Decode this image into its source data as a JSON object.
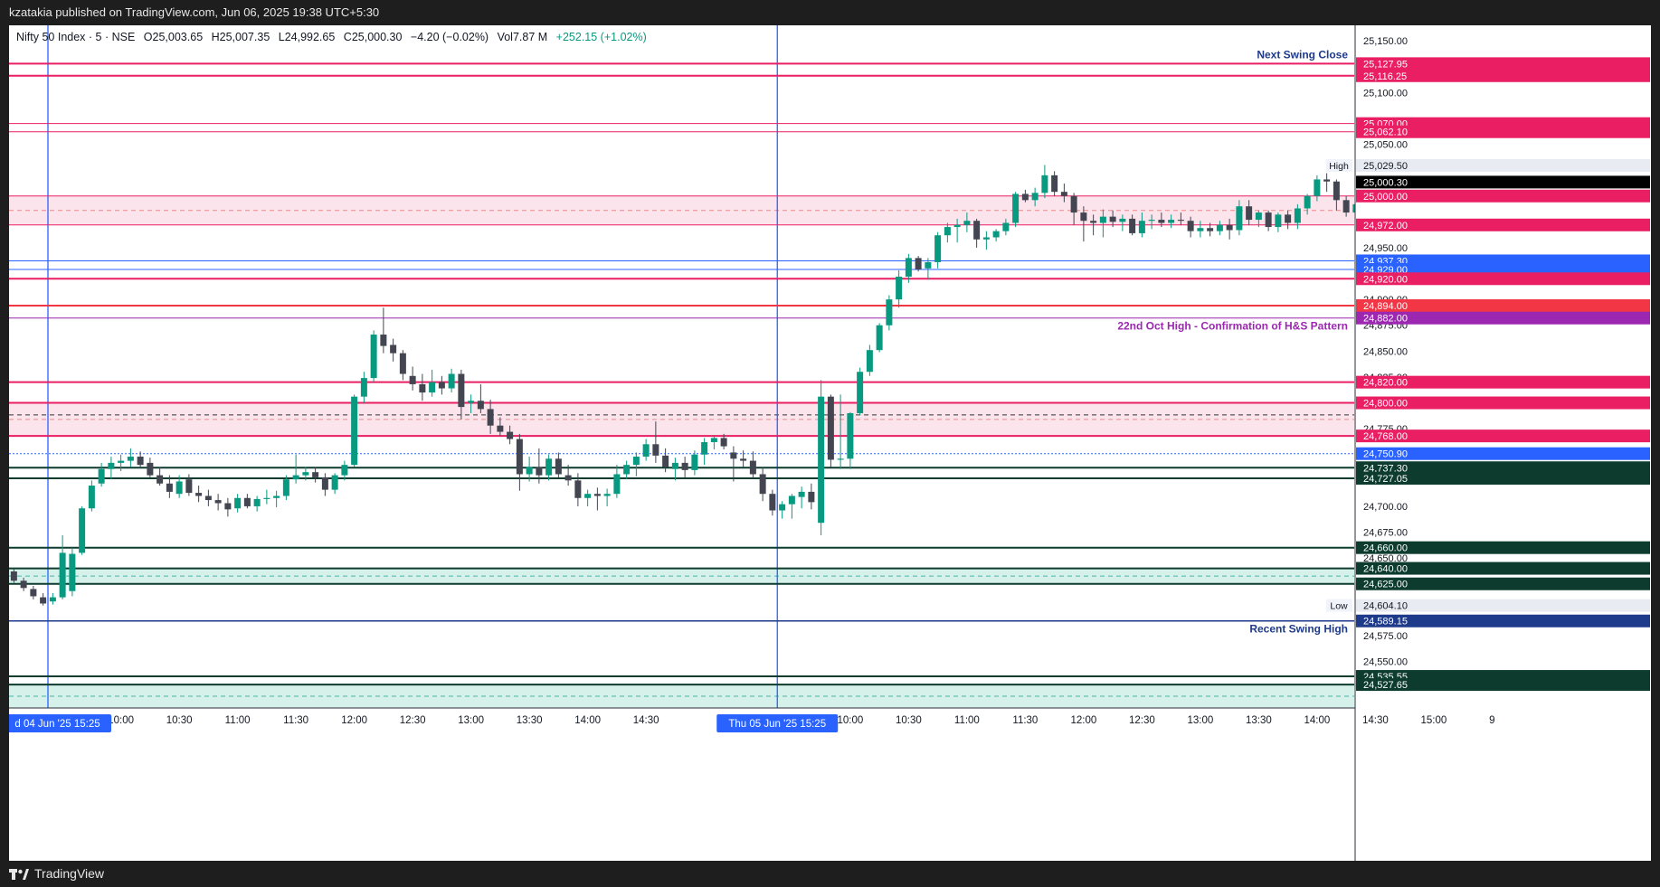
{
  "header": {
    "publish_text": "kzatakia published on TradingView.com, Jun 06, 2025 19:38 UTC+5:30"
  },
  "footer": {
    "brand": "TradingView",
    "logo_icon": "tradingview-logo-icon"
  },
  "legend": {
    "symbol": "Nifty 50 Index · 5 · NSE",
    "open_label": "O",
    "open": "25,003.65",
    "high_label": "H",
    "high": "25,007.35",
    "low_label": "L",
    "low": "24,992.65",
    "close_label": "C",
    "close": "25,000.30",
    "change": "−4.20 (−0.02%)",
    "volume_label": "Vol",
    "volume": "7.87 M",
    "extra_change": "+252.15 (+1.02%)"
  },
  "colors": {
    "bull": "#089981",
    "bear": "#434651",
    "red": "#f23645",
    "crimson": "#e91e63",
    "blue": "#2962ff",
    "navy": "#1e3a8a",
    "darkgreen": "#0d3b2e",
    "purple": "#9c27b0",
    "pink_zone": "#fce4ec",
    "green_zone": "#d6f1ea"
  },
  "chart_data": {
    "type": "candlestick",
    "symbol": "Nifty 50 Index",
    "interval": "5",
    "ylim": [
      24505,
      25165
    ],
    "y_ticks": [
      {
        "value": 25150,
        "label": "25,150.00"
      },
      {
        "value": 25100,
        "label": "25,100.00"
      },
      {
        "value": 25050,
        "label": "25,050.00"
      },
      {
        "value": 24950,
        "label": "24,950.00"
      },
      {
        "value": 24900,
        "label": "24,900.00"
      },
      {
        "value": 24875,
        "label": "24,875.00"
      },
      {
        "value": 24850,
        "label": "24,850.00"
      },
      {
        "value": 24825,
        "label": "24,825.00"
      },
      {
        "value": 24775,
        "label": "24,775.00"
      },
      {
        "value": 24700,
        "label": "24,700.00"
      },
      {
        "value": 24675,
        "label": "24,675.00"
      },
      {
        "value": 24650,
        "label": "24,650.00"
      },
      {
        "value": 24575,
        "label": "24,575.00"
      },
      {
        "value": 24550,
        "label": "24,550.00"
      }
    ],
    "x_ticks": [
      {
        "label": "10:00",
        "bar": 11
      },
      {
        "label": "10:30",
        "bar": 17
      },
      {
        "label": "11:00",
        "bar": 23
      },
      {
        "label": "11:30",
        "bar": 29
      },
      {
        "label": "12:00",
        "bar": 35
      },
      {
        "label": "12:30",
        "bar": 41
      },
      {
        "label": "13:00",
        "bar": 47
      },
      {
        "label": "13:30",
        "bar": 53
      },
      {
        "label": "14:00",
        "bar": 59
      },
      {
        "label": "14:30",
        "bar": 65
      },
      {
        "label": "10:00",
        "bar": 86
      },
      {
        "label": "10:30",
        "bar": 92
      },
      {
        "label": "11:00",
        "bar": 98
      },
      {
        "label": "11:30",
        "bar": 104
      },
      {
        "label": "12:00",
        "bar": 110
      },
      {
        "label": "12:30",
        "bar": 116
      },
      {
        "label": "13:00",
        "bar": 122
      },
      {
        "label": "13:30",
        "bar": 128
      },
      {
        "label": "14:00",
        "bar": 134
      },
      {
        "label": "14:30",
        "bar": 140
      },
      {
        "label": "15:00",
        "bar": 146
      },
      {
        "label": "9",
        "bar": 152
      }
    ],
    "session_markers": [
      {
        "label": "d 04 Jun '25   15:25",
        "bar": 4
      },
      {
        "label": "Thu 05 Jun '25   15:25",
        "bar": 79
      }
    ],
    "horizontal_levels": [
      {
        "value": 25127.95,
        "label": "25,127.95",
        "color": "crimson",
        "width": 2
      },
      {
        "value": 25116.25,
        "label": "25,116.25",
        "color": "crimson",
        "width": 2
      },
      {
        "value": 25070.0,
        "label": "25,070.00",
        "color": "crimson",
        "width": 1
      },
      {
        "value": 25062.1,
        "label": "25,062.10",
        "color": "crimson",
        "width": 1
      },
      {
        "value": 25000.0,
        "label": "25,000.00",
        "color": "crimson",
        "width": 1
      },
      {
        "value": 24972.0,
        "label": "24,972.00",
        "color": "crimson",
        "width": 1
      },
      {
        "value": 24937.3,
        "label": "24,937.30",
        "color": "blue",
        "width": 1
      },
      {
        "value": 24929.0,
        "label": "24,929.00",
        "color": "blue",
        "width": 1
      },
      {
        "value": 24920.0,
        "label": "24,920.00",
        "color": "crimson",
        "width": 2
      },
      {
        "value": 24894.0,
        "label": "24,894.00",
        "color": "red",
        "width": 2
      },
      {
        "value": 24882.0,
        "label": "24,882.00",
        "color": "purple",
        "width": 1
      },
      {
        "value": 24820.0,
        "label": "24,820.00",
        "color": "crimson",
        "width": 2
      },
      {
        "value": 24800.0,
        "label": "24,800.00",
        "color": "crimson",
        "width": 2
      },
      {
        "value": 24768.0,
        "label": "24,768.00",
        "color": "crimson",
        "width": 2
      },
      {
        "value": 24750.9,
        "label": "24,750.90",
        "color": "blue",
        "width": 1
      },
      {
        "value": 24737.3,
        "label": "24,737.30",
        "color": "darkgreen",
        "width": 2
      },
      {
        "value": 24727.05,
        "label": "24,727.05",
        "color": "darkgreen",
        "width": 2
      },
      {
        "value": 24660.0,
        "label": "24,660.00",
        "color": "darkgreen",
        "width": 2
      },
      {
        "value": 24640.0,
        "label": "24,640.00",
        "color": "darkgreen",
        "width": 2
      },
      {
        "value": 24625.0,
        "label": "24,625.00",
        "color": "darkgreen",
        "width": 2
      },
      {
        "value": 24589.15,
        "label": "24,589.15",
        "color": "navy",
        "width": 1.5
      },
      {
        "value": 24535.55,
        "label": "24,535.55",
        "color": "darkgreen",
        "width": 2
      },
      {
        "value": 24527.65,
        "label": "24,527.65",
        "color": "darkgreen",
        "width": 2
      }
    ],
    "zones": [
      {
        "from": 25000.0,
        "to": 24972.0,
        "color": "pink_zone",
        "mid_dashed": true
      },
      {
        "from": 24800.0,
        "to": 24768.0,
        "color": "pink_zone",
        "mid_dashed": true
      },
      {
        "from": 24640.0,
        "to": 24625.0,
        "color": "green_zone",
        "mid_dashed": true
      },
      {
        "from": 24527.65,
        "to": 24505.0,
        "color": "green_zone",
        "mid_dashed": true
      }
    ],
    "annotations": [
      {
        "text": "Next Swing Close",
        "value": 25127.95,
        "color": "navy"
      },
      {
        "text": "22nd Oct High - Confirmation of H&S Pattern",
        "value": 24882.0,
        "color": "purple"
      },
      {
        "text": "Recent Swing High",
        "value": 24589.15,
        "color": "navy"
      }
    ],
    "markers": [
      {
        "text": "High",
        "value": 25029.5,
        "price_label": "25,029.50"
      },
      {
        "text": "Low",
        "value": 24604.1,
        "price_label": "24,604.10"
      }
    ],
    "last_price": {
      "value": 25000.3,
      "label": "25,000.30"
    },
    "candles": [
      [
        24637,
        24640,
        24626,
        24628
      ],
      [
        24628,
        24631,
        24618,
        24621
      ],
      [
        24620,
        24623,
        24610,
        24613
      ],
      [
        24612,
        24616,
        24604,
        24606
      ],
      [
        24608,
        24616,
        24605,
        24612
      ],
      [
        24612,
        24672,
        24610,
        24655
      ],
      [
        24618,
        24660,
        24613,
        24654
      ],
      [
        24655,
        24700,
        24653,
        24698
      ],
      [
        24698,
        24725,
        24695,
        24720
      ],
      [
        24722,
        24742,
        24719,
        24736
      ],
      [
        24736,
        24748,
        24726,
        24742
      ],
      [
        24742,
        24750,
        24734,
        24744
      ],
      [
        24744,
        24756,
        24738,
        24748
      ],
      [
        24748,
        24753,
        24737,
        24740
      ],
      [
        24742,
        24747,
        24728,
        24730
      ],
      [
        24730,
        24738,
        24720,
        24722
      ],
      [
        24722,
        24730,
        24708,
        24714
      ],
      [
        24712,
        24730,
        24708,
        24724
      ],
      [
        24726,
        24731,
        24710,
        24713
      ],
      [
        24713,
        24720,
        24704,
        24710
      ],
      [
        24710,
        24716,
        24700,
        24706
      ],
      [
        24706,
        24712,
        24696,
        24703
      ],
      [
        24703,
        24708,
        24690,
        24697
      ],
      [
        24698,
        24712,
        24694,
        24708
      ],
      [
        24708,
        24712,
        24698,
        24700
      ],
      [
        24700,
        24710,
        24695,
        24707
      ],
      [
        24707,
        24716,
        24702,
        24708
      ],
      [
        24708,
        24715,
        24699,
        24710
      ],
      [
        24710,
        24730,
        24706,
        24726
      ],
      [
        24726,
        24750,
        24722,
        24730
      ],
      [
        24730,
        24738,
        24725,
        24733
      ],
      [
        24733,
        24738,
        24723,
        24728
      ],
      [
        24728,
        24732,
        24710,
        24716
      ],
      [
        24716,
        24732,
        24712,
        24730
      ],
      [
        24730,
        24744,
        24725,
        24740
      ],
      [
        24740,
        24808,
        24738,
        24806
      ],
      [
        24806,
        24830,
        24800,
        24824
      ],
      [
        24824,
        24870,
        24820,
        24866
      ],
      [
        24866,
        24892,
        24848,
        24855
      ],
      [
        24856,
        24862,
        24840,
        24848
      ],
      [
        24848,
        24851,
        24822,
        24828
      ],
      [
        24826,
        24835,
        24812,
        24818
      ],
      [
        24818,
        24828,
        24802,
        24810
      ],
      [
        24810,
        24832,
        24806,
        24820
      ],
      [
        24820,
        24826,
        24808,
        24814
      ],
      [
        24814,
        24833,
        24810,
        24828
      ],
      [
        24828,
        24832,
        24784,
        24796
      ],
      [
        24800,
        24808,
        24790,
        24802
      ],
      [
        24802,
        24818,
        24790,
        24794
      ],
      [
        24794,
        24803,
        24770,
        24778
      ],
      [
        24778,
        24786,
        24768,
        24772
      ],
      [
        24772,
        24778,
        24760,
        24765
      ],
      [
        24765,
        24770,
        24715,
        24731
      ],
      [
        24731,
        24748,
        24724,
        24738
      ],
      [
        24738,
        24756,
        24722,
        24730
      ],
      [
        24730,
        24750,
        24725,
        24746
      ],
      [
        24746,
        24752,
        24728,
        24731
      ],
      [
        24730,
        24740,
        24720,
        24725
      ],
      [
        24725,
        24732,
        24700,
        24708
      ],
      [
        24708,
        24716,
        24700,
        24712
      ],
      [
        24712,
        24718,
        24696,
        24710
      ],
      [
        24710,
        24717,
        24700,
        24712
      ],
      [
        24712,
        24740,
        24708,
        24731
      ],
      [
        24731,
        24744,
        24726,
        24740
      ],
      [
        24740,
        24752,
        24729,
        24748
      ],
      [
        24748,
        24765,
        24744,
        24760
      ],
      [
        24760,
        24782,
        24742,
        24749
      ],
      [
        24749,
        24756,
        24733,
        24738
      ],
      [
        24736,
        24747,
        24725,
        24742
      ],
      [
        24742,
        24748,
        24728,
        24735
      ],
      [
        24735,
        24754,
        24730,
        24750
      ],
      [
        24750,
        24766,
        24740,
        24762
      ],
      [
        24762,
        24769,
        24755,
        24766
      ],
      [
        24766,
        24770,
        24755,
        24758
      ],
      [
        24752,
        24758,
        24724,
        24746
      ],
      [
        24746,
        24754,
        24738,
        24744
      ],
      [
        24744,
        24753,
        24727,
        24731
      ],
      [
        24731,
        24738,
        24705,
        24712
      ],
      [
        24712,
        24716,
        24691,
        24696
      ],
      [
        24696,
        24705,
        24688,
        24702
      ],
      [
        24702,
        24712,
        24688,
        24710
      ],
      [
        24709,
        24719,
        24698,
        24714
      ],
      [
        24714,
        24722,
        24697,
        24704
      ],
      [
        24684,
        24822,
        24672,
        24806
      ],
      [
        24806,
        24808,
        24738,
        24745
      ],
      [
        24745,
        24808,
        24736,
        24746
      ],
      [
        24746,
        24791,
        24736,
        24790
      ],
      [
        24790,
        24834,
        24788,
        24830
      ],
      [
        24830,
        24856,
        24826,
        24851
      ],
      [
        24851,
        24877,
        24849,
        24875
      ],
      [
        24875,
        24904,
        24870,
        24900
      ],
      [
        24900,
        24928,
        24892,
        24922
      ],
      [
        24922,
        24944,
        24916,
        24940
      ],
      [
        24940,
        24942,
        24927,
        24929
      ],
      [
        24930,
        24940,
        24919,
        24936
      ],
      [
        24936,
        24965,
        24930,
        24962
      ],
      [
        24962,
        24974,
        24955,
        24970
      ],
      [
        24970,
        24978,
        24955,
        24972
      ],
      [
        24972,
        24984,
        24965,
        24976
      ],
      [
        24976,
        24978,
        24950,
        24958
      ],
      [
        24958,
        24966,
        24948,
        24960
      ],
      [
        24960,
        24968,
        24956,
        24966
      ],
      [
        24966,
        24978,
        24962,
        24974
      ],
      [
        24974,
        25004,
        24970,
        25002
      ],
      [
        25002,
        25006,
        24994,
        24996
      ],
      [
        24996,
        25008,
        24990,
        25003
      ],
      [
        25003,
        25030,
        24998,
        25020
      ],
      [
        25020,
        25024,
        25000,
        25004
      ],
      [
        25004,
        25012,
        24994,
        25000
      ],
      [
        25000,
        25003,
        24972,
        24984
      ],
      [
        24984,
        24990,
        24956,
        24976
      ],
      [
        24976,
        24982,
        24962,
        24974
      ],
      [
        24974,
        24987,
        24960,
        24980
      ],
      [
        24980,
        24986,
        24970,
        24975
      ],
      [
        24975,
        24982,
        24966,
        24978
      ],
      [
        24978,
        24982,
        24962,
        24964
      ],
      [
        24964,
        24984,
        24960,
        24976
      ],
      [
        24976,
        24982,
        24968,
        24977
      ],
      [
        24977,
        24984,
        24970,
        24974
      ],
      [
        24974,
        24982,
        24969,
        24977
      ],
      [
        24977,
        24984,
        24972,
        24976
      ],
      [
        24976,
        24980,
        24960,
        24966
      ],
      [
        24966,
        24976,
        24960,
        24969
      ],
      [
        24969,
        24974,
        24961,
        24966
      ],
      [
        24966,
        24976,
        24962,
        24972
      ],
      [
        24972,
        24978,
        24958,
        24967
      ],
      [
        24967,
        24996,
        24962,
        24990
      ],
      [
        24990,
        24996,
        24972,
        24977
      ],
      [
        24977,
        24986,
        24970,
        24984
      ],
      [
        24984,
        24986,
        24966,
        24970
      ],
      [
        24970,
        24984,
        24965,
        24982
      ],
      [
        24982,
        24986,
        24968,
        24974
      ],
      [
        24974,
        24992,
        24968,
        24988
      ],
      [
        24988,
        25002,
        24982,
        25000
      ],
      [
        25000,
        25020,
        24995,
        25016
      ],
      [
        25016,
        25022,
        25004,
        25014
      ],
      [
        25014,
        25016,
        24986,
        24996
      ],
      [
        24996,
        25000,
        24980,
        24984
      ],
      [
        24984,
        24996,
        24980,
        24992
      ],
      [
        24992,
        24999,
        24978,
        24986
      ],
      [
        24986,
        25000,
        24982,
        24994
      ],
      [
        24994,
        25000,
        24988,
        24996
      ],
      [
        24996,
        25008,
        24990,
        25003
      ],
      [
        25003,
        25011,
        24990,
        24996
      ],
      [
        24996,
        25006,
        24988,
        25004
      ],
      [
        25004,
        25008,
        24990,
        25000
      ],
      [
        25000,
        25007,
        24992,
        24997
      ],
      [
        24997,
        25007,
        24992,
        25000
      ]
    ]
  }
}
